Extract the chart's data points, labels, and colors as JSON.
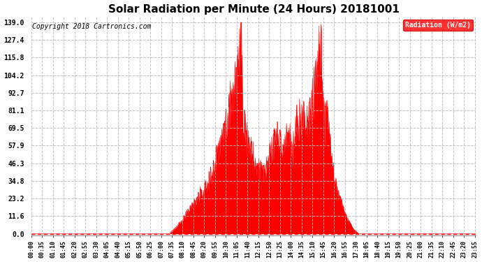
{
  "title": "Solar Radiation per Minute (24 Hours) 20181001",
  "copyright_text": "Copyright 2018 Cartronics.com",
  "legend_label": "Radiation (W/m2)",
  "yticks": [
    0.0,
    11.6,
    23.2,
    34.8,
    46.3,
    57.9,
    69.5,
    81.1,
    92.7,
    104.2,
    115.8,
    127.4,
    139.0
  ],
  "ymax": 143,
  "fill_color": "#ff0000",
  "bg_color": "#ffffff",
  "grid_color": "#bbbbbb",
  "title_fontsize": 11,
  "copyright_fontsize": 7,
  "legend_bg": "#ff0000",
  "legend_text_color": "#ffffff",
  "dashed_line_color": "#ff0000",
  "xtick_interval_minutes": 35,
  "envelope_points": [
    [
      0,
      0
    ],
    [
      449,
      0
    ],
    [
      450,
      1
    ],
    [
      460,
      3
    ],
    [
      470,
      5
    ],
    [
      480,
      8
    ],
    [
      490,
      10
    ],
    [
      500,
      14
    ],
    [
      510,
      17
    ],
    [
      520,
      20
    ],
    [
      530,
      23
    ],
    [
      540,
      26
    ],
    [
      550,
      30
    ],
    [
      555,
      28
    ],
    [
      560,
      32
    ],
    [
      565,
      35
    ],
    [
      570,
      33
    ],
    [
      575,
      38
    ],
    [
      578,
      40
    ],
    [
      580,
      42
    ],
    [
      583,
      35
    ],
    [
      585,
      40
    ],
    [
      590,
      45
    ],
    [
      595,
      50
    ],
    [
      598,
      55
    ],
    [
      600,
      60
    ],
    [
      603,
      55
    ],
    [
      605,
      58
    ],
    [
      608,
      62
    ],
    [
      610,
      65
    ],
    [
      613,
      62
    ],
    [
      615,
      70
    ],
    [
      618,
      68
    ],
    [
      620,
      72
    ],
    [
      623,
      69
    ],
    [
      625,
      75
    ],
    [
      628,
      73
    ],
    [
      630,
      78
    ],
    [
      633,
      82
    ],
    [
      636,
      85
    ],
    [
      638,
      88
    ],
    [
      640,
      92
    ],
    [
      642,
      90
    ],
    [
      644,
      95
    ],
    [
      646,
      93
    ],
    [
      648,
      97
    ],
    [
      650,
      100
    ],
    [
      652,
      98
    ],
    [
      654,
      102
    ],
    [
      656,
      105
    ],
    [
      658,
      103
    ],
    [
      660,
      107
    ],
    [
      662,
      110
    ],
    [
      664,
      113
    ],
    [
      666,
      116
    ],
    [
      668,
      120
    ],
    [
      670,
      124
    ],
    [
      672,
      128
    ],
    [
      674,
      131
    ],
    [
      676,
      135
    ],
    [
      678,
      137
    ],
    [
      680,
      139
    ],
    [
      681,
      136
    ],
    [
      682,
      130
    ],
    [
      683,
      110
    ],
    [
      684,
      95
    ],
    [
      685,
      85
    ],
    [
      686,
      80
    ],
    [
      688,
      82
    ],
    [
      690,
      78
    ],
    [
      692,
      75
    ],
    [
      694,
      72
    ],
    [
      696,
      70
    ],
    [
      698,
      68
    ],
    [
      700,
      65
    ],
    [
      705,
      62
    ],
    [
      710,
      60
    ],
    [
      715,
      58
    ],
    [
      720,
      55
    ],
    [
      725,
      52
    ],
    [
      730,
      50
    ],
    [
      735,
      48
    ],
    [
      740,
      46
    ],
    [
      745,
      44
    ],
    [
      750,
      42
    ],
    [
      755,
      45
    ],
    [
      760,
      48
    ],
    [
      765,
      52
    ],
    [
      770,
      55
    ],
    [
      775,
      58
    ],
    [
      780,
      62
    ],
    [
      785,
      65
    ],
    [
      790,
      68
    ],
    [
      795,
      70
    ],
    [
      800,
      68
    ],
    [
      805,
      65
    ],
    [
      810,
      63
    ],
    [
      815,
      62
    ],
    [
      820,
      65
    ],
    [
      825,
      68
    ],
    [
      827,
      70
    ],
    [
      829,
      67
    ],
    [
      831,
      65
    ],
    [
      833,
      68
    ],
    [
      835,
      70
    ],
    [
      837,
      68
    ],
    [
      839,
      65
    ],
    [
      841,
      62
    ],
    [
      843,
      60
    ],
    [
      845,
      58
    ],
    [
      847,
      62
    ],
    [
      849,
      65
    ],
    [
      851,
      68
    ],
    [
      853,
      72
    ],
    [
      855,
      75
    ],
    [
      857,
      78
    ],
    [
      859,
      82
    ],
    [
      861,
      80
    ],
    [
      863,
      78
    ],
    [
      865,
      80
    ],
    [
      867,
      82
    ],
    [
      869,
      85
    ],
    [
      871,
      83
    ],
    [
      873,
      80
    ],
    [
      875,
      82
    ],
    [
      877,
      80
    ],
    [
      879,
      78
    ],
    [
      881,
      80
    ],
    [
      883,
      82
    ],
    [
      885,
      85
    ],
    [
      887,
      83
    ],
    [
      889,
      80
    ],
    [
      891,
      78
    ],
    [
      893,
      80
    ],
    [
      895,
      82
    ],
    [
      897,
      85
    ],
    [
      899,
      83
    ],
    [
      901,
      85
    ],
    [
      903,
      88
    ],
    [
      905,
      90
    ],
    [
      907,
      92
    ],
    [
      909,
      95
    ],
    [
      911,
      98
    ],
    [
      913,
      101
    ],
    [
      915,
      104
    ],
    [
      917,
      107
    ],
    [
      919,
      110
    ],
    [
      921,
      113
    ],
    [
      923,
      116
    ],
    [
      925,
      119
    ],
    [
      927,
      122
    ],
    [
      929,
      125
    ],
    [
      931,
      128
    ],
    [
      933,
      131
    ],
    [
      935,
      134
    ],
    [
      937,
      137
    ],
    [
      938,
      139
    ],
    [
      939,
      136
    ],
    [
      940,
      130
    ],
    [
      941,
      120
    ],
    [
      942,
      110
    ],
    [
      943,
      100
    ],
    [
      944,
      92
    ],
    [
      945,
      88
    ],
    [
      946,
      85
    ],
    [
      947,
      83
    ],
    [
      948,
      80
    ],
    [
      949,
      78
    ],
    [
      950,
      76
    ],
    [
      951,
      78
    ],
    [
      952,
      80
    ],
    [
      953,
      82
    ],
    [
      954,
      85
    ],
    [
      955,
      88
    ],
    [
      956,
      90
    ],
    [
      957,
      88
    ],
    [
      958,
      85
    ],
    [
      959,
      82
    ],
    [
      960,
      80
    ],
    [
      961,
      78
    ],
    [
      962,
      75
    ],
    [
      963,
      72
    ],
    [
      964,
      70
    ],
    [
      965,
      68
    ],
    [
      966,
      65
    ],
    [
      967,
      63
    ],
    [
      968,
      60
    ],
    [
      969,
      58
    ],
    [
      970,
      56
    ],
    [
      971,
      54
    ],
    [
      972,
      52
    ],
    [
      973,
      50
    ],
    [
      975,
      48
    ],
    [
      977,
      45
    ],
    [
      979,
      42
    ],
    [
      981,
      40
    ],
    [
      983,
      38
    ],
    [
      985,
      35
    ],
    [
      990,
      32
    ],
    [
      995,
      28
    ],
    [
      1000,
      25
    ],
    [
      1005,
      22
    ],
    [
      1010,
      18
    ],
    [
      1015,
      15
    ],
    [
      1020,
      12
    ],
    [
      1025,
      10
    ],
    [
      1030,
      8
    ],
    [
      1035,
      6
    ],
    [
      1040,
      4
    ],
    [
      1045,
      3
    ],
    [
      1050,
      2
    ],
    [
      1055,
      1
    ],
    [
      1060,
      0
    ],
    [
      1440,
      0
    ]
  ]
}
